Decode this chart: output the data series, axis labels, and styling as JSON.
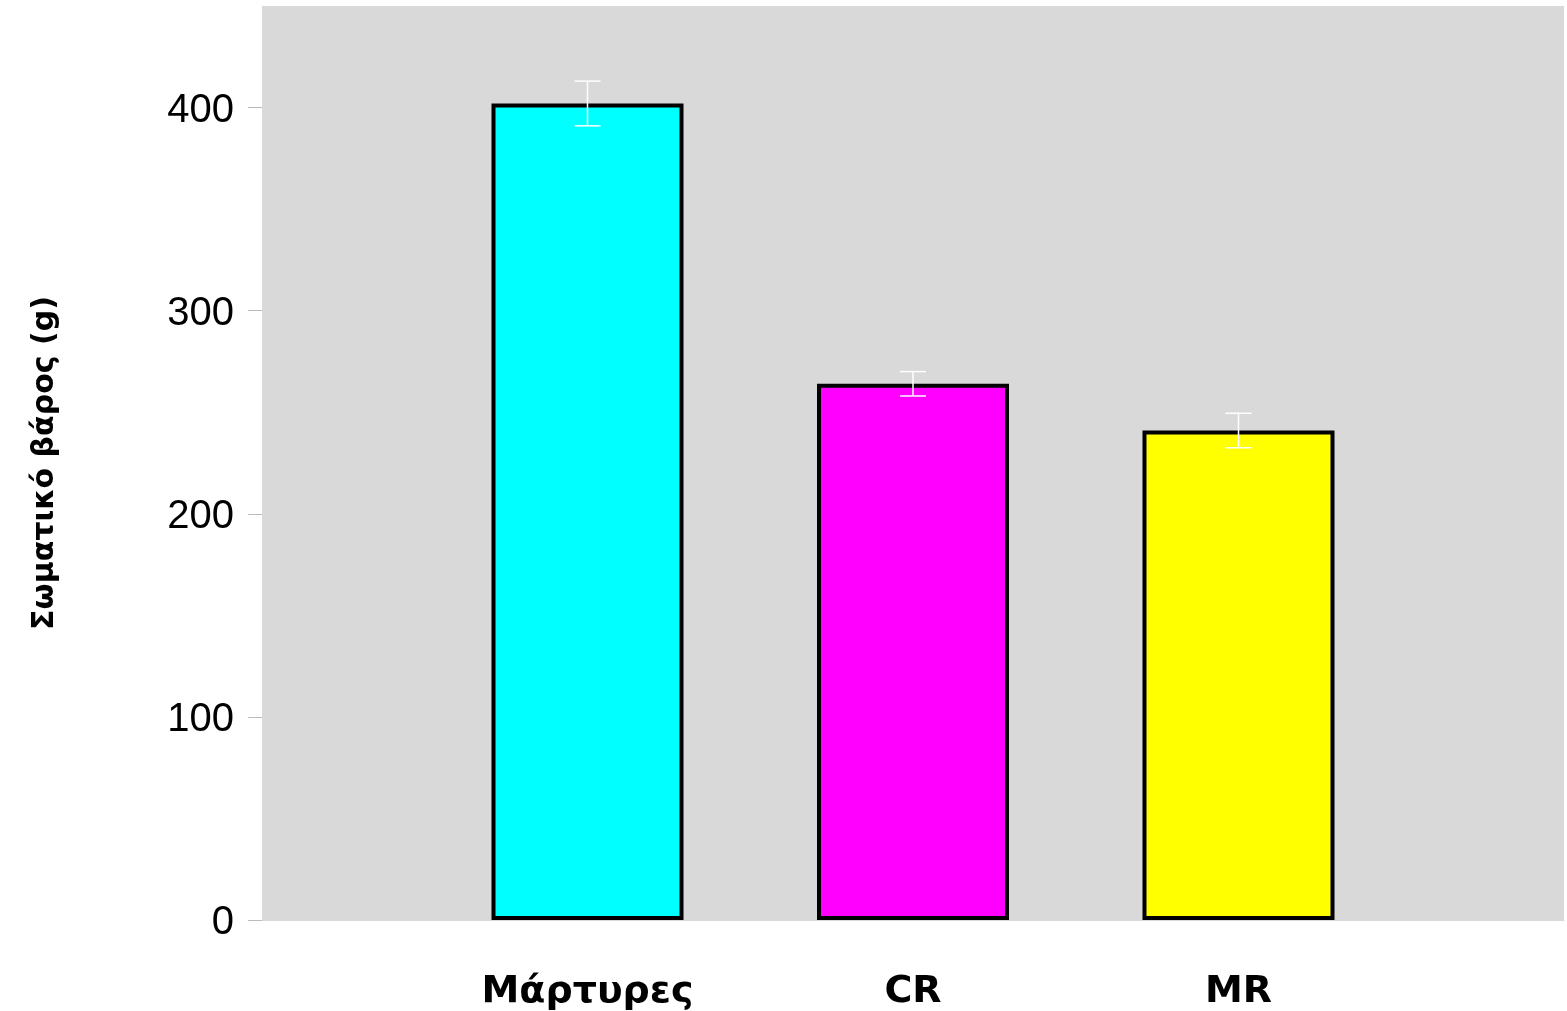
{
  "chart_data": {
    "type": "bar",
    "ylabel": "Σωματικό βάρος (g)",
    "categories": [
      "Μάρτυρες",
      "CR",
      "MR"
    ],
    "values": [
      402,
      264,
      241
    ],
    "colors": [
      "#00ffff",
      "#ff00ff",
      "#ffff00"
    ],
    "errors": [
      11,
      6,
      8.5
    ],
    "ylim": [
      0,
      450
    ],
    "yticks": [
      0,
      100,
      200,
      300,
      400
    ],
    "grid": false
  }
}
